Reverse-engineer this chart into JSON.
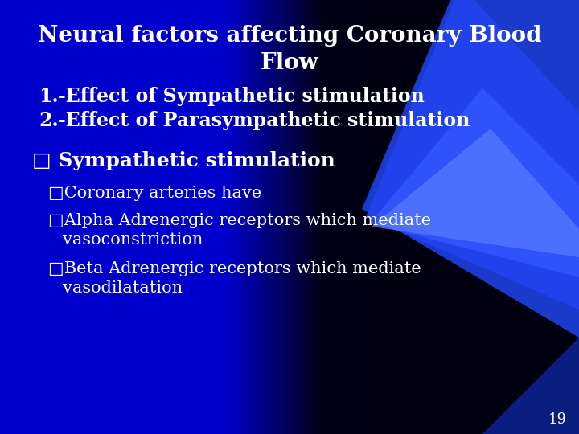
{
  "title_line1": "Neural factors affecting Coronary Blood",
  "title_line2": "Flow",
  "item1_num": "1.",
  "item1": "   -Effect of Sympathetic stimulation",
  "item2_num": "2.",
  "item2": "   -Effect of Parasympathetic stimulation",
  "section_header": "□ Sympathetic stimulation",
  "bullet1": "□Coronary arteries have",
  "bullet2": "□Alpha Adrenergic receptors which mediate",
  "bullet2b": "   vasoconstriction",
  "bullet3": "□Beta Adrenergic receptors which mediate",
  "bullet3b": "   vasodilatation",
  "page_number": "19",
  "bg_blue": "#0000cc",
  "bg_dark": "#000010",
  "swoosh_color": "#2244dd",
  "swoosh_bright": "#4466ff",
  "title_color": "#ffffff",
  "text_color": "#ffffff",
  "title_fontsize": 20,
  "body_fontsize": 17,
  "sub_fontsize": 15,
  "small_fontsize": 13
}
